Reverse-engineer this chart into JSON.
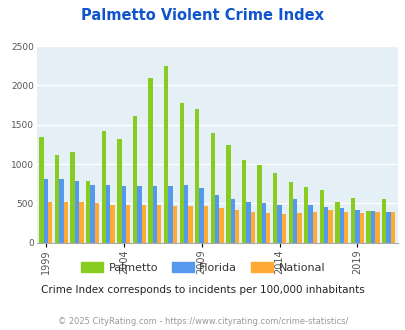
{
  "title": "Palmetto Violent Crime Index",
  "years": [
    1999,
    2000,
    2001,
    2002,
    2003,
    2004,
    2005,
    2006,
    2007,
    2008,
    2009,
    2010,
    2011,
    2012,
    2013,
    2014,
    2015,
    2016,
    2017,
    2018,
    2019,
    2020,
    2021
  ],
  "palmetto": [
    1340,
    1120,
    1150,
    780,
    1420,
    1320,
    1610,
    2090,
    2250,
    1780,
    1700,
    1390,
    1240,
    1050,
    990,
    880,
    775,
    710,
    665,
    520,
    570,
    400,
    560
  ],
  "florida": [
    810,
    810,
    780,
    730,
    730,
    720,
    720,
    720,
    720,
    730,
    700,
    610,
    550,
    520,
    500,
    480,
    550,
    480,
    450,
    440,
    410,
    400,
    390
  ],
  "national": [
    510,
    510,
    510,
    500,
    480,
    480,
    480,
    480,
    470,
    470,
    460,
    445,
    410,
    395,
    380,
    365,
    375,
    395,
    415,
    390,
    370,
    385,
    390
  ],
  "palmetto_color": "#88cc22",
  "florida_color": "#5599ee",
  "national_color": "#ffaa33",
  "bg_color": "#e4f0f6",
  "title_color": "#1155cc",
  "ylim": [
    0,
    2500
  ],
  "yticks": [
    0,
    500,
    1000,
    1500,
    2000,
    2500
  ],
  "xtick_years": [
    1999,
    2004,
    2009,
    2014,
    2019
  ],
  "subtitle": "Crime Index corresponds to incidents per 100,000 inhabitants",
  "footer": "© 2025 CityRating.com - https://www.cityrating.com/crime-statistics/",
  "legend_labels": [
    "Palmetto",
    "Florida",
    "National"
  ]
}
